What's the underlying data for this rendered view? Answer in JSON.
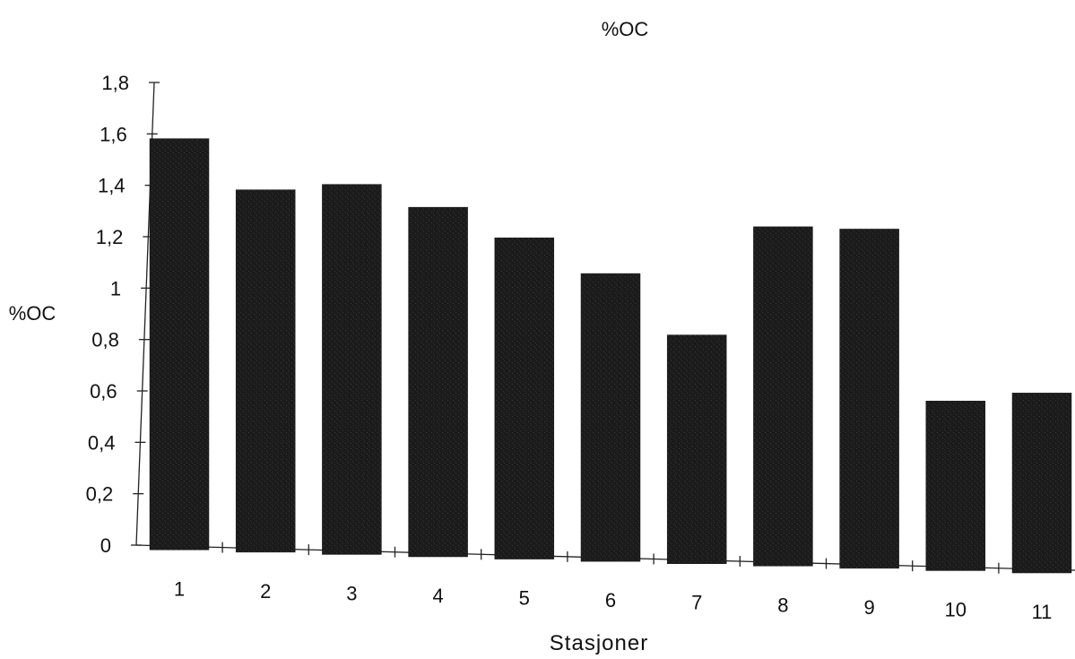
{
  "chart_data": {
    "type": "bar",
    "title": "%OC",
    "xlabel": "Stasjoner",
    "ylabel": "%OC",
    "categories": [
      "1",
      "2",
      "3",
      "4",
      "5",
      "6",
      "7",
      "8",
      "9",
      "10",
      "11"
    ],
    "values": [
      1.6,
      1.41,
      1.44,
      1.36,
      1.25,
      1.12,
      0.89,
      1.32,
      1.32,
      0.66,
      0.7
    ],
    "ylim": [
      0,
      1.8
    ],
    "yticks": [
      "0",
      "0,2",
      "0,4",
      "0,6",
      "0,8",
      "1",
      "1,2",
      "1,4",
      "1,6",
      "1,8"
    ],
    "bar_color": "#1a1a1a",
    "grid": false,
    "legend": "none"
  }
}
